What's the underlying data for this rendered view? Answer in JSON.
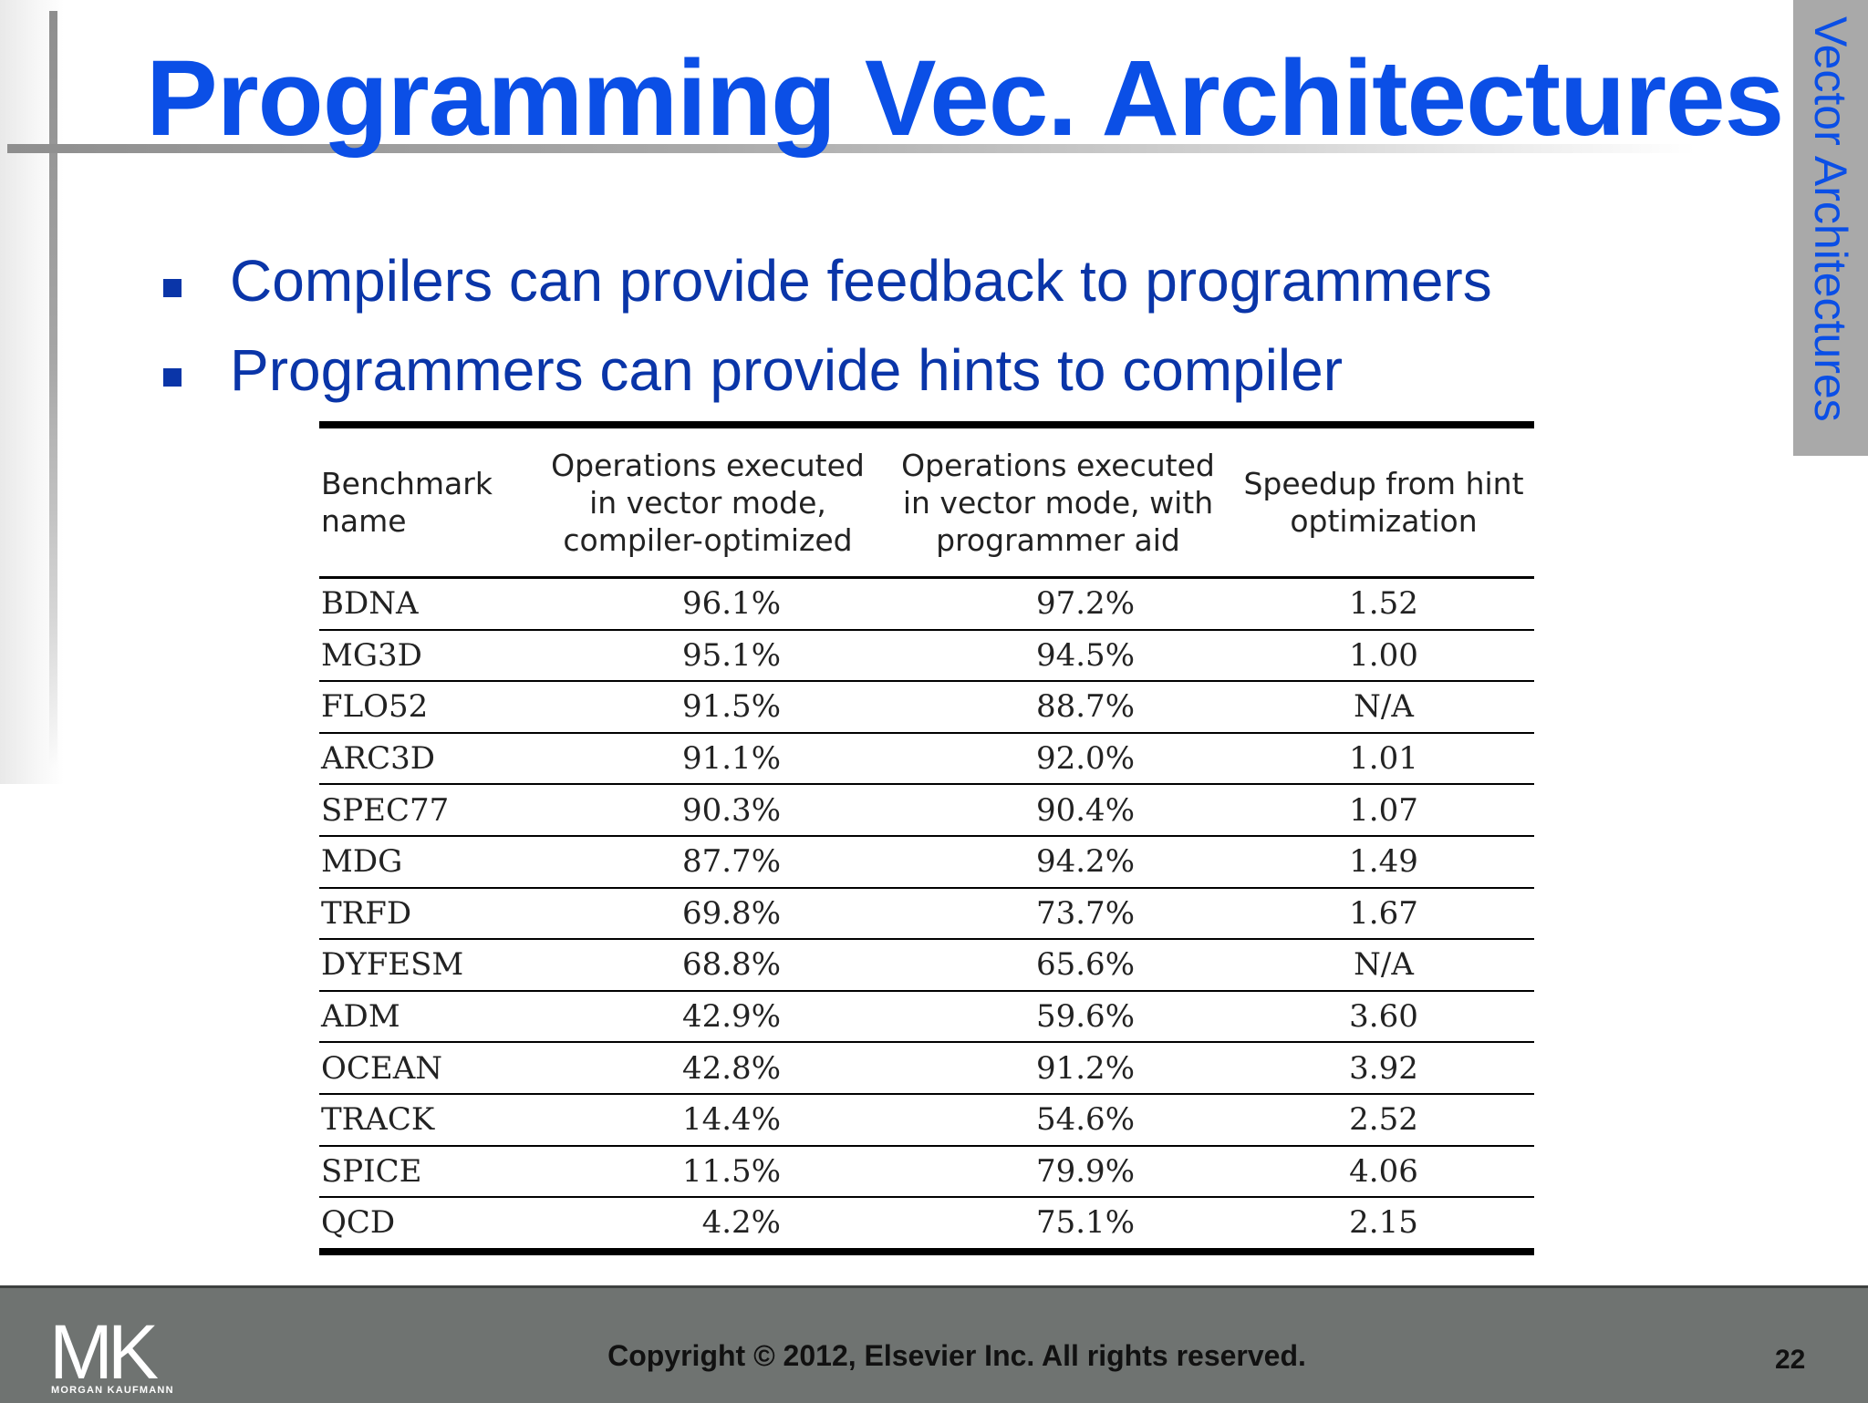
{
  "slide": {
    "title": "Programming Vec. Architectures",
    "side_label": "Vector Architectures",
    "bullets": [
      "Compilers can provide feedback to programmers",
      "Programmers can provide hints to compiler"
    ]
  },
  "table": {
    "headers": [
      "Benchmark name",
      "Operations executed in vector mode, compiler-optimized",
      "Operations executed in vector mode, with programmer aid",
      "Speedup from hint optimization"
    ],
    "rows": [
      [
        "BDNA",
        "96.1%",
        "97.2%",
        "1.52"
      ],
      [
        "MG3D",
        "95.1%",
        "94.5%",
        "1.00"
      ],
      [
        "FLO52",
        "91.5%",
        "88.7%",
        "N/A"
      ],
      [
        "ARC3D",
        "91.1%",
        "92.0%",
        "1.01"
      ],
      [
        "SPEC77",
        "90.3%",
        "90.4%",
        "1.07"
      ],
      [
        "MDG",
        "87.7%",
        "94.2%",
        "1.49"
      ],
      [
        "TRFD",
        "69.8%",
        "73.7%",
        "1.67"
      ],
      [
        "DYFESM",
        "68.8%",
        "65.6%",
        "N/A"
      ],
      [
        "ADM",
        "42.9%",
        "59.6%",
        "3.60"
      ],
      [
        "OCEAN",
        "42.8%",
        "91.2%",
        "3.92"
      ],
      [
        "TRACK",
        "14.4%",
        "54.6%",
        "2.52"
      ],
      [
        "SPICE",
        "11.5%",
        "79.9%",
        "4.06"
      ],
      [
        "QCD",
        "4.2%",
        "75.1%",
        "2.15"
      ]
    ]
  },
  "footer": {
    "logo_text": "MK",
    "logo_subtext": "MORGAN KAUFMANN",
    "copyright": "Copyright © 2012, Elsevier Inc. All rights reserved.",
    "page_number": "22"
  }
}
